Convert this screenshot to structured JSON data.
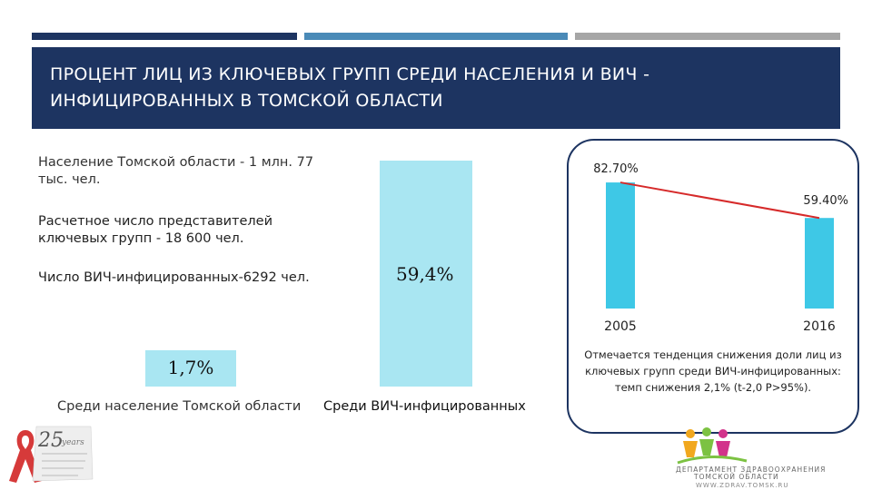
{
  "header": {
    "title": "ПРОЦЕНТ ЛИЦ ИЗ КЛЮЧЕВЫХ ГРУПП СРЕДИ НАСЕЛЕНИЯ И ВИЧ - ИНФИЦИРОВАННЫХ В ТОМСКОЙ ОБЛАСТИ"
  },
  "info": {
    "population": "Население Томской области - 1 млн. 77 тыс. чел.",
    "key_groups": "Расчетное число представителей ключевых групп - 18 600 чел.",
    "hiv_count": "Число ВИЧ-инфицированных-6292 чел."
  },
  "colors": {
    "header_bg": "#1d3461",
    "deco_blue": "#4a8ab7",
    "deco_gray": "#a6a6a6",
    "bar_light": "#a9e6f2",
    "bar_trend": "#3ec8e6",
    "trend_line": "#d62a2a",
    "logo_red": "#d63a3a",
    "logo_green": "#7cc242"
  },
  "chart_data": [
    {
      "type": "bar",
      "categories": [
        "Среди население Томской области",
        "Среди ВИЧ-инфицированных"
      ],
      "values": [
        1.7,
        59.4
      ],
      "value_labels": [
        "1,7%",
        "59,4%"
      ],
      "ylim": [
        0,
        60
      ],
      "grid": false
    },
    {
      "type": "bar",
      "categories": [
        "2005",
        "2016"
      ],
      "values": [
        82.7,
        59.4
      ],
      "value_labels": [
        "82.70%",
        "59.40%"
      ],
      "ylim": [
        0,
        100
      ],
      "trend_line": true,
      "grid": false
    }
  ],
  "trend_note": "Отмечается тенденция снижения доли лиц из ключевых групп среди ВИЧ-инфицированных: темп снижения 2,1% (t-2,0 P>95%).",
  "logos": {
    "ribbon_icon": "red-ribbon-icon",
    "ribbon_years_number": "25",
    "ribbon_years_word": "years",
    "dept_icon": "people-figures-icon",
    "dept_name_1": "ДЕПАРТАМЕНТ ЗДРАВООХРАНЕНИЯ",
    "dept_name_2": "ТОМСКОЙ ОБЛАСТИ",
    "dept_url": "WWW.ZDRAV.TOMSK.RU"
  }
}
